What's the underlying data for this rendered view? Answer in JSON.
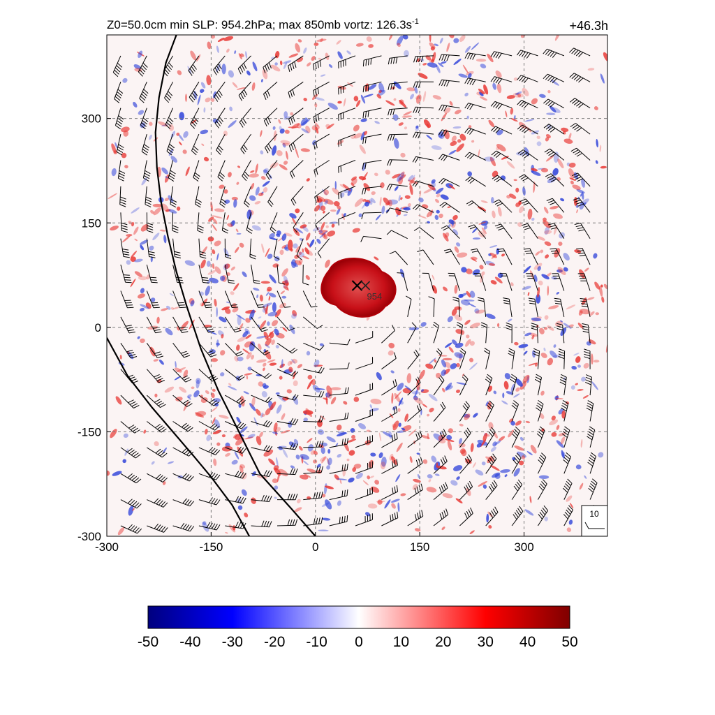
{
  "chart_data": {
    "type": "heatmap",
    "title_left": "Z0=50.0cm  min SLP: 954.2hPa; max 850mb vortz: 126.3s",
    "title_left_sup": "-1",
    "title_right": "+46.3h",
    "xlim": [
      -300,
      420
    ],
    "ylim": [
      -300,
      420
    ],
    "x_ticks": [
      -300,
      -150,
      0,
      150,
      300
    ],
    "y_ticks": [
      -300,
      -150,
      0,
      150,
      300
    ],
    "grid": "dashed",
    "center": {
      "x": 60,
      "y": 60,
      "marker": "x"
    },
    "center_label": "954",
    "min_slp_hpa": 954.2,
    "max_vorticity": 126.3,
    "colorbar": {
      "ticks": [
        -50,
        -40,
        -30,
        -20,
        -10,
        0,
        10,
        20,
        30,
        40,
        50
      ],
      "min": -50,
      "max": 50,
      "colors": [
        "#00007f",
        "#0000ff",
        "#ffffff",
        "#ff0000",
        "#7f0000"
      ]
    },
    "reference_vector_label": "10",
    "coastline_1": [
      [
        -200,
        420
      ],
      [
        -215,
        380
      ],
      [
        -225,
        330
      ],
      [
        -230,
        280
      ],
      [
        -228,
        230
      ],
      [
        -222,
        180
      ],
      [
        -212,
        130
      ],
      [
        -200,
        80
      ],
      [
        -185,
        30
      ],
      [
        -165,
        -30
      ],
      [
        -140,
        -90
      ],
      [
        -110,
        -150
      ],
      [
        -80,
        -210
      ],
      [
        -35,
        -260
      ],
      [
        0,
        -300
      ]
    ],
    "coastline_2": [
      [
        -300,
        -15
      ],
      [
        -270,
        -70
      ],
      [
        -235,
        -115
      ],
      [
        -205,
        -150
      ],
      [
        -175,
        -185
      ],
      [
        -150,
        -215
      ],
      [
        -120,
        -255
      ],
      [
        -95,
        -300
      ]
    ]
  },
  "colors": {
    "positive": "#e8332f",
    "negative": "#2b3fd9",
    "core": "#b00008",
    "line": "#000000",
    "grid": "#777777"
  },
  "icons": {
    "center_marker": "x-mark-icon",
    "wind_barb": "wind-barb-icon"
  }
}
